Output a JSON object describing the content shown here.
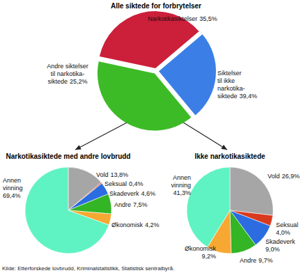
{
  "chart_data": [
    {
      "type": "pie",
      "title": "Alle siktede for forbrytelser",
      "categories": [
        "Narkotikasiktelser",
        "Andre siktelser\ntil narkotika-\nsiktede",
        "Siktelser\ntil ikke\nnarkotika-\nsiktede"
      ],
      "values": [
        35.5,
        25.2,
        39.4
      ],
      "value_labels": [
        "35,5%",
        "25,2%",
        "39,4%"
      ],
      "colors": [
        "#cc1f3a",
        "#3b7fe6",
        "#3dbb26"
      ],
      "data_labels": true
    },
    {
      "type": "pie",
      "title": "Narkotikasiktede med andre lovbrudd",
      "categories": [
        "Vold",
        "Seksual",
        "Skadeverk",
        "Andre",
        "Økonomisk",
        "Annen\nvinning"
      ],
      "values": [
        13.8,
        0.4,
        4.6,
        7.5,
        4.2,
        69.4
      ],
      "value_labels": [
        "13,8%",
        "0,4%",
        "4,6%",
        "7,5%",
        "4,2%",
        "69,4%"
      ],
      "colors": [
        "#a6a6a6",
        "#d9391e",
        "#2b6de0",
        "#33b526",
        "#f7a833",
        "#5ff2c2"
      ],
      "data_labels": true
    },
    {
      "type": "pie",
      "title": "Ikke narkotikasiktede",
      "categories": [
        "Vold",
        "Seksual",
        "Skadeverk",
        "Andre",
        "Økonomisk",
        "Annen\nvinning"
      ],
      "values": [
        26.9,
        4.0,
        9.0,
        9.7,
        9.2,
        41.3
      ],
      "value_labels": [
        "26,9%",
        "4,0%",
        "9,0%",
        "9,7%",
        "9,2%",
        "41,3%"
      ],
      "colors": [
        "#a6a6a6",
        "#d9391e",
        "#2b6de0",
        "#33b526",
        "#f7a833",
        "#5ff2c2"
      ],
      "data_labels": true
    }
  ],
  "source": "Kilde: Etterforskede lovbrudd, Kriminalstatistikk, Statistisk sentralbyrå."
}
